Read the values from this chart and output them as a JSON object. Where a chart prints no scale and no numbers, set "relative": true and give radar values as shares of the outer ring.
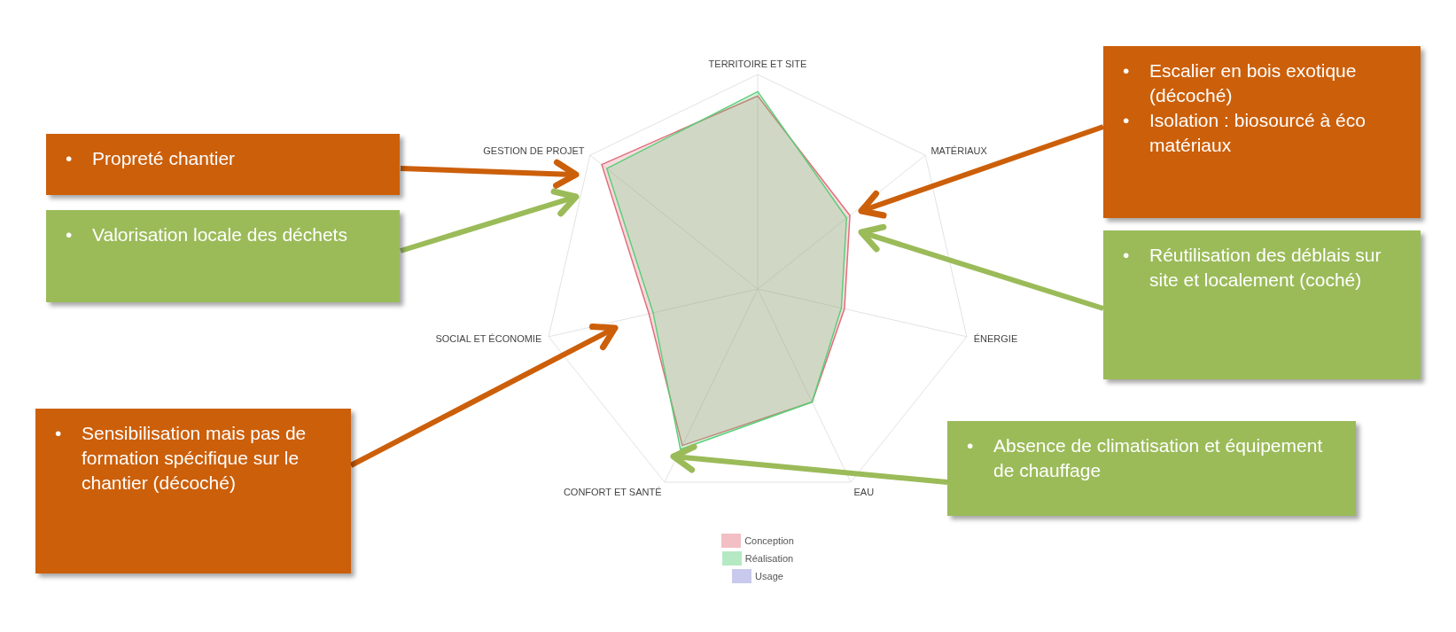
{
  "chart_data": {
    "type": "radar",
    "relative": true,
    "categories": [
      "TERRITOIRE ET SITE",
      "MATÉRIAUX",
      "ÉNERGIE",
      "EAU",
      "CONFORT ET SANTÉ",
      "SOCIAL ET ÉCONOMIE",
      "GESTION DE PROJET"
    ],
    "series": [
      {
        "name": "Conception",
        "color": "#e0707c",
        "values": [
          0.9,
          0.55,
          0.415,
          0.585,
          0.81,
          0.52,
          0.93
        ]
      },
      {
        "name": "Réalisation",
        "color": "#5ccf7a",
        "values": [
          0.92,
          0.53,
          0.4,
          0.585,
          0.83,
          0.5,
          0.9
        ]
      },
      {
        "name": "Usage",
        "values": [
          null,
          null,
          null,
          null,
          null,
          null,
          null
        ]
      }
    ],
    "legend": "bottom",
    "annotations": [
      "• Propreté chantier",
      "• Valorisation locale des déchets",
      "• Escalier en bois exotique (décoché)\n• Isolation : biosourcé à éco matériaux",
      "• Réutilisation des déblais sur site et localement (coché)",
      "• Sensibilisation mais pas de formation spécifique sur le chantier (décoché)",
      "• Absence de climatisation et équipement de chauffage"
    ]
  }
}
